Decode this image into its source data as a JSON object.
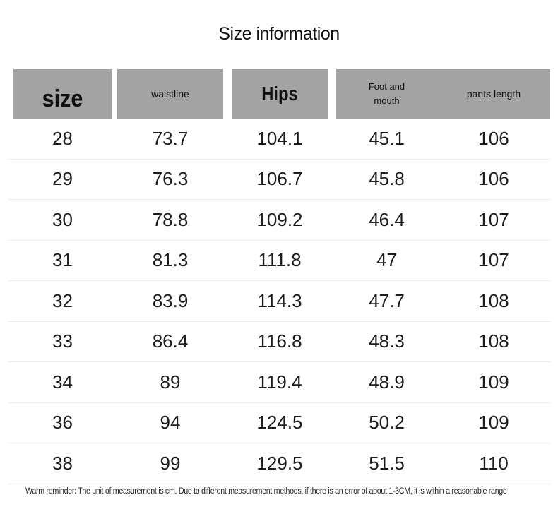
{
  "title": "Size information",
  "table": {
    "headers": [
      "size",
      "waistline",
      "Hips",
      "Foot and\nmouth",
      "pants length"
    ],
    "rows": [
      [
        "28",
        "73.7",
        "104.1",
        "45.1",
        "106"
      ],
      [
        "29",
        "76.3",
        "106.7",
        "45.8",
        "106"
      ],
      [
        "30",
        "78.8",
        "109.2",
        "46.4",
        "107"
      ],
      [
        "31",
        "81.3",
        "111.8",
        "47",
        "107"
      ],
      [
        "32",
        "83.9",
        "114.3",
        "47.7",
        "108"
      ],
      [
        "33",
        "86.4",
        "116.8",
        "48.3",
        "108"
      ],
      [
        "34",
        "89",
        "119.4",
        "48.9",
        "109"
      ],
      [
        "36",
        "94",
        "124.5",
        "50.2",
        "109"
      ],
      [
        "38",
        "99",
        "129.5",
        "51.5",
        "110"
      ]
    ]
  },
  "reminder": "Warm reminder: The unit of measurement is cm. Due to different measurement methods, if there is an error of about 1-3CM, it is within a reasonable range",
  "colors": {
    "header_bg": "#a3a3a3",
    "row_divider": "#ececec",
    "text": "#1c1c1c"
  }
}
